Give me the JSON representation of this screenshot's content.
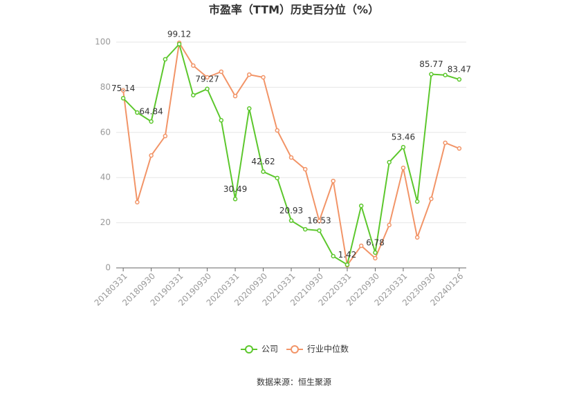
{
  "chart_data": {
    "type": "line",
    "title": "市盈率（TTM）历史百分位（%）",
    "source": "数据来源：恒生聚源",
    "categories": [
      "20180331",
      null,
      "20180930",
      null,
      "20190331",
      null,
      "20190930",
      null,
      "20200331",
      null,
      "20200930",
      null,
      "20210331",
      null,
      "20210930",
      null,
      "20220331",
      null,
      "20220930",
      null,
      "20230331",
      null,
      "20230930",
      null,
      "20240126"
    ],
    "series": [
      {
        "name": "公司",
        "color": "#5cc72c",
        "values": [
          75.14,
          68.8,
          64.84,
          92.4,
          99.12,
          76.5,
          79.27,
          65.4,
          30.49,
          70.6,
          42.62,
          39.8,
          20.93,
          17.1,
          16.53,
          5.2,
          1.42,
          27.5,
          6.78,
          46.8,
          53.46,
          29.4,
          85.77,
          85.4,
          83.47
        ],
        "value_labels": [
          "75.14",
          null,
          "64.84",
          null,
          "99.12",
          null,
          "79.27",
          null,
          "30.49",
          null,
          "42.62",
          null,
          "20.93",
          null,
          "16.53",
          null,
          "1.42",
          null,
          "6.78",
          null,
          "53.46",
          null,
          "85.77",
          null,
          "83.47"
        ]
      },
      {
        "name": "行业中位数",
        "color": "#f29467",
        "values": [
          78.6,
          29.1,
          49.8,
          58.4,
          99.7,
          89.6,
          84.4,
          86.9,
          76.1,
          85.6,
          84.4,
          60.9,
          48.9,
          43.7,
          20.8,
          38.5,
          1.2,
          9.8,
          4.3,
          19.0,
          44.3,
          13.5,
          30.6,
          55.4,
          52.9
        ]
      }
    ],
    "ylim": [
      0,
      100
    ],
    "yticks": [
      0,
      20,
      40,
      60,
      80,
      100
    ],
    "grid": true
  }
}
